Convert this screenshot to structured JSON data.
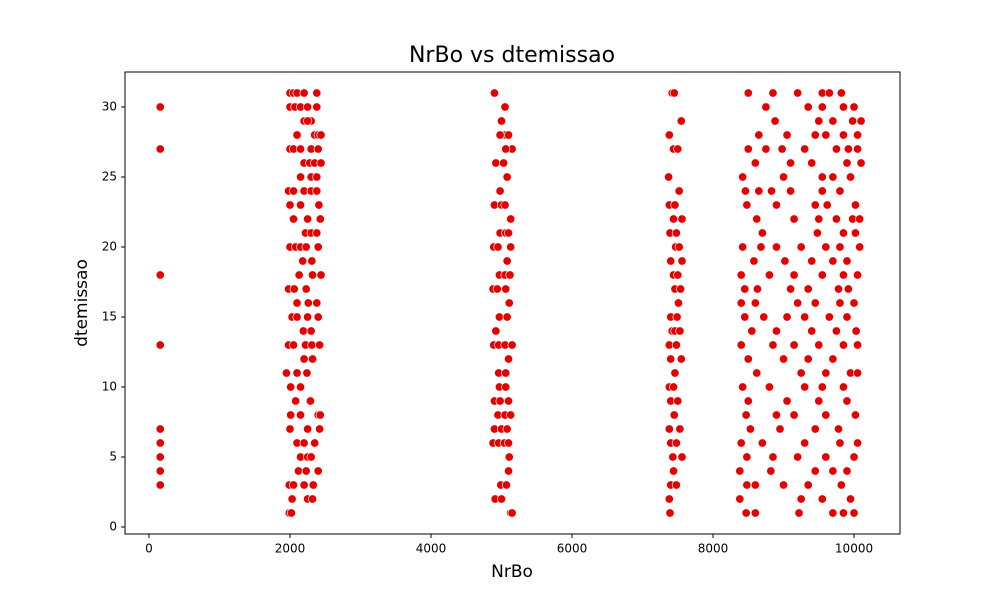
{
  "chart_data": {
    "type": "scatter",
    "title": "NrBo vs dtemissao",
    "xlabel": "NrBo",
    "ylabel": "dtemissao",
    "color": "#e50000",
    "xlim": [
      -340,
      10652
    ],
    "ylim": [
      -0.5,
      32.5
    ],
    "xticks": [
      0,
      2000,
      4000,
      6000,
      8000,
      10000
    ],
    "yticks": [
      0,
      5,
      10,
      15,
      20,
      25,
      30
    ],
    "x": [
      160,
      160,
      160,
      160,
      160,
      160,
      160,
      160,
      160,
      2000,
      2050,
      2100,
      2200,
      2380,
      2000,
      2070,
      2150,
      2250,
      2380,
      2300,
      2200,
      2250,
      2100,
      2350,
      2400,
      2440,
      2000,
      2050,
      2150,
      2300,
      2400,
      2200,
      2280,
      2350,
      2440,
      2150,
      2300,
      2380,
      1980,
      2050,
      2200,
      2300,
      2380,
      2000,
      2150,
      2410,
      2050,
      2250,
      2430,
      2220,
      2300,
      2380,
      2000,
      2080,
      2150,
      2230,
      2400,
      2180,
      2310,
      2130,
      2320,
      2440,
      1980,
      2060,
      2230,
      2100,
      2260,
      2380,
      2030,
      2100,
      2250,
      2400,
      2190,
      2300,
      1980,
      2050,
      2220,
      2310,
      2420,
      2200,
      2320,
      1950,
      2100,
      2240,
      2010,
      2150,
      2080,
      2290,
      2010,
      2150,
      2400,
      2430,
      2000,
      2250,
      2420,
      2100,
      2200,
      2350,
      2150,
      2250,
      2300,
      2120,
      2230,
      2400,
      1990,
      2050,
      2200,
      2330,
      2030,
      2250,
      2320,
      1990,
      2020,
      4900,
      5050,
      5000,
      5050,
      5100,
      4980,
      5150,
      5060,
      4920,
      5030,
      5080,
      4980,
      4900,
      5000,
      5050,
      5130,
      4980,
      5060,
      5100,
      4890,
      4950,
      5130,
      5080,
      4970,
      5050,
      5120,
      4880,
      4940,
      5060,
      5110,
      4970,
      5080,
      4920,
      4890,
      4960,
      5050,
      5150,
      5100,
      4960,
      5060,
      4970,
      5060,
      4900,
      4980,
      5100,
      4950,
      5050,
      5130,
      4900,
      5000,
      5080,
      4880,
      4960,
      5040,
      5100,
      5110,
      5100,
      4990,
      5070,
      4910,
      5000,
      5130,
      5150,
      7420,
      7450,
      7550,
      7380,
      7440,
      7500,
      7370,
      7520,
      7380,
      7460,
      7440,
      7560,
      7390,
      7480,
      7470,
      7520,
      7400,
      7560,
      7440,
      7500,
      7460,
      7540,
      7510,
      7400,
      7490,
      7420,
      7460,
      7530,
      7380,
      7480,
      7400,
      7550,
      7460,
      7380,
      7440,
      7400,
      7500,
      7450,
      7380,
      7530,
      7400,
      7480,
      7430,
      7560,
      7440,
      7400,
      7480,
      7380,
      7390,
      8500,
      8850,
      9200,
      9550,
      9650,
      9820,
      10000,
      8750,
      9350,
      9550,
      9850,
      8880,
      9500,
      9700,
      9980,
      10100,
      8650,
      9050,
      9450,
      9600,
      9850,
      10050,
      8500,
      8750,
      8980,
      9300,
      9750,
      9920,
      10050,
      8600,
      9100,
      9400,
      9900,
      10100,
      8420,
      9000,
      9550,
      9700,
      9950,
      8460,
      8650,
      8830,
      9100,
      9550,
      9800,
      8480,
      8900,
      9450,
      9620,
      10020,
      8620,
      9150,
      9500,
      9750,
      9980,
      10080,
      8700,
      9480,
      9850,
      10020,
      8420,
      8680,
      8900,
      9250,
      9600,
      9800,
      10080,
      8580,
      9020,
      9400,
      9700,
      9900,
      8400,
      8800,
      9150,
      9550,
      9850,
      10050,
      8450,
      8630,
      9100,
      9350,
      9780,
      9920,
      8400,
      8600,
      9200,
      9450,
      9800,
      10000,
      8450,
      8720,
      9050,
      9300,
      9650,
      9900,
      8550,
      8900,
      9400,
      9750,
      10030,
      8400,
      8850,
      9150,
      9500,
      9850,
      10050,
      8500,
      9000,
      9350,
      9700,
      8620,
      9250,
      9600,
      9950,
      10050,
      8420,
      8800,
      9300,
      9550,
      9850,
      8500,
      9050,
      9500,
      9900,
      8470,
      8900,
      9150,
      9600,
      10020,
      8530,
      8950,
      9450,
      9780,
      8400,
      8700,
      9300,
      9800,
      10050,
      8480,
      8850,
      9200,
      9600,
      10000,
      8380,
      8820,
      9450,
      9700,
      9900,
      8480,
      8600,
      9000,
      9350,
      9820,
      8380,
      9250,
      9550,
      9950,
      8470,
      8600,
      9220,
      9700,
      9850,
      10000
    ],
    "values": [
      30,
      27,
      18,
      13,
      7,
      6,
      5,
      4,
      3,
      31,
      31,
      31,
      31,
      31,
      30,
      30,
      30,
      30,
      30,
      29,
      29,
      29,
      28,
      28,
      28,
      28,
      27,
      27,
      27,
      27,
      27,
      26,
      26,
      26,
      26,
      25,
      25,
      25,
      24,
      24,
      24,
      24,
      24,
      23,
      23,
      23,
      22,
      22,
      22,
      21,
      21,
      21,
      20,
      20,
      20,
      20,
      20,
      19,
      19,
      18,
      18,
      18,
      17,
      17,
      17,
      16,
      16,
      16,
      15,
      15,
      15,
      15,
      14,
      14,
      13,
      13,
      13,
      13,
      13,
      12,
      12,
      11,
      11,
      11,
      10,
      10,
      9,
      9,
      8,
      8,
      8,
      8,
      7,
      7,
      7,
      6,
      6,
      6,
      5,
      5,
      5,
      4,
      4,
      4,
      3,
      3,
      3,
      3,
      2,
      2,
      2,
      1,
      1,
      31,
      30,
      29,
      28,
      28,
      28,
      27,
      27,
      26,
      26,
      25,
      24,
      23,
      23,
      23,
      22,
      21,
      21,
      21,
      20,
      20,
      20,
      19,
      18,
      18,
      18,
      17,
      17,
      17,
      16,
      15,
      15,
      14,
      13,
      13,
      13,
      13,
      12,
      11,
      11,
      10,
      10,
      9,
      9,
      9,
      8,
      8,
      8,
      7,
      7,
      7,
      6,
      6,
      6,
      6,
      5,
      4,
      3,
      3,
      2,
      2,
      1,
      1,
      31,
      31,
      29,
      28,
      27,
      27,
      25,
      24,
      23,
      23,
      22,
      22,
      21,
      21,
      20,
      20,
      19,
      19,
      18,
      18,
      17,
      17,
      16,
      15,
      15,
      14,
      14,
      14,
      13,
      13,
      12,
      12,
      11,
      10,
      10,
      9,
      9,
      8,
      7,
      7,
      6,
      6,
      5,
      5,
      4,
      3,
      3,
      2,
      1,
      31,
      31,
      31,
      31,
      31,
      31,
      30,
      30,
      30,
      30,
      30,
      29,
      29,
      29,
      29,
      29,
      28,
      28,
      28,
      28,
      28,
      28,
      27,
      27,
      27,
      27,
      27,
      27,
      27,
      26,
      26,
      26,
      26,
      26,
      25,
      25,
      25,
      25,
      25,
      24,
      24,
      24,
      24,
      24,
      24,
      23,
      23,
      23,
      23,
      23,
      22,
      22,
      22,
      22,
      22,
      22,
      21,
      21,
      21,
      21,
      20,
      20,
      20,
      20,
      20,
      20,
      20,
      19,
      19,
      19,
      19,
      19,
      18,
      18,
      18,
      18,
      18,
      18,
      17,
      17,
      17,
      17,
      17,
      17,
      16,
      16,
      16,
      16,
      16,
      16,
      15,
      15,
      15,
      15,
      15,
      15,
      14,
      14,
      14,
      14,
      14,
      13,
      13,
      13,
      13,
      13,
      13,
      12,
      12,
      12,
      12,
      11,
      11,
      11,
      11,
      11,
      10,
      10,
      10,
      10,
      10,
      9,
      9,
      9,
      9,
      8,
      8,
      8,
      8,
      8,
      7,
      7,
      7,
      7,
      6,
      6,
      6,
      6,
      6,
      5,
      5,
      5,
      5,
      5,
      4,
      4,
      4,
      4,
      4,
      3,
      3,
      3,
      3,
      3,
      2,
      2,
      2,
      2,
      1,
      1,
      1,
      1,
      1,
      1
    ]
  }
}
